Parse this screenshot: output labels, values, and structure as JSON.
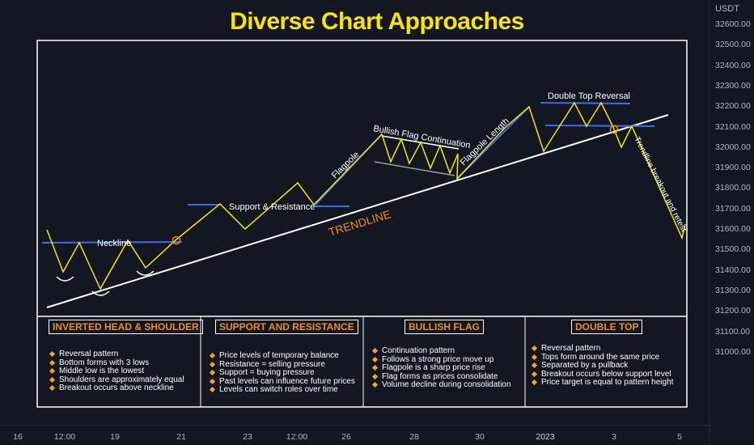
{
  "title": "Diverse Chart Approaches",
  "currency": "USDT",
  "price_axis": [
    "32600.00",
    "32500.00",
    "32400.00",
    "32300.00",
    "32200.00",
    "32100.00",
    "32000.00",
    "31900.00",
    "31800.00",
    "31700.00",
    "31600.00",
    "31500.00",
    "31400.00",
    "31300.00",
    "31200.00",
    "31100.00",
    "31000.00"
  ],
  "time_axis": [
    "16",
    "12:00",
    "19",
    "21",
    "23",
    "12:00",
    "26",
    "28",
    "30",
    "2023",
    "3",
    "5"
  ],
  "annotations": {
    "neckline": "Neckline",
    "support_resistance": "Support & Resistance",
    "trendline": "TRENDLINE",
    "flagpole": "Flagpole",
    "bullish_flag_continuation": "Bullish Flag Continuation",
    "flagpole_length": "Flagpole Length",
    "double_top_reversal": "Double Top Reversal",
    "trendline_breakout": "Trendline breakout and retest"
  },
  "panels": [
    {
      "title": "INVERTED HEAD & SHOULDER",
      "items": [
        "Reversal pattern",
        "Bottom forms with 3 lows",
        "Middle low is the lowest",
        "Shoulders are approximately equal",
        "Breakout occurs above neckline"
      ]
    },
    {
      "title": "SUPPORT AND RESISTANCE",
      "items": [
        "Price levels of temporary balance",
        "Resistance = selling pressure",
        "Support = buying pressure",
        "Past levels can influence future prices",
        "Levels can switch roles over time"
      ]
    },
    {
      "title": "BULLISH FLAG",
      "items": [
        "Continuation pattern",
        "Follows a strong price move up",
        "Flagpole is a sharp price rise",
        "Flag forms as prices consolidate",
        "Volume decline during consolidation"
      ]
    },
    {
      "title": "DOUBLE TOP",
      "items": [
        "Reversal pattern",
        "Tops form around the same price",
        "Separated by a pullback",
        "Breakout occurs below support level",
        "Price target is equal to pattern height"
      ]
    }
  ],
  "colors": {
    "background": "#131722",
    "title": "#f5e50a",
    "price_line": "#f5e50a",
    "level_line": "#3d6bf0",
    "trendline": "#ffffff",
    "panel_title": "#f08c1e",
    "bullet": "#f5a623"
  }
}
